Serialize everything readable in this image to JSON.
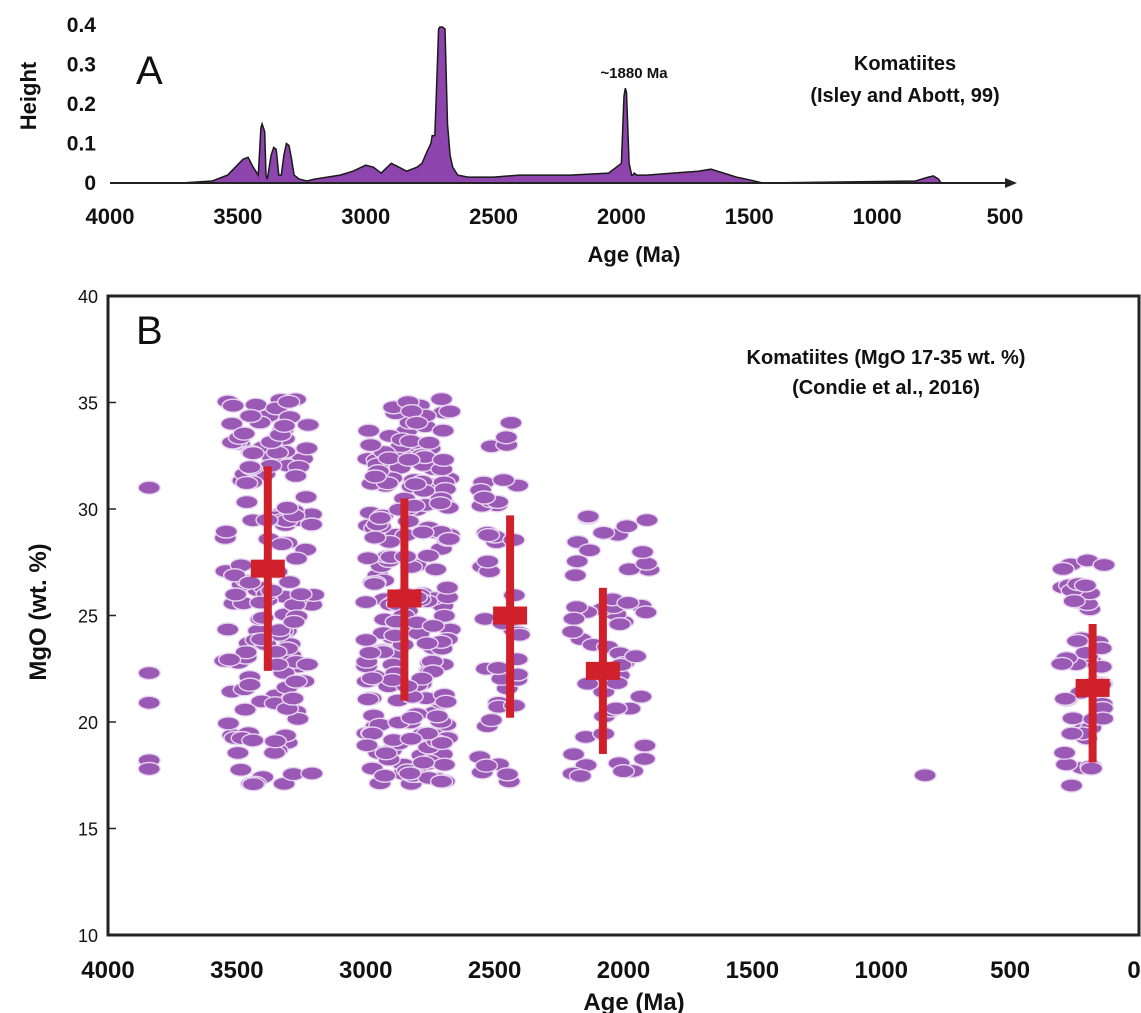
{
  "colors": {
    "purple_fill": "#8e44ad",
    "purple_dark": "#6a2c85",
    "dot_fill": "#9b59b6",
    "dot_stroke": "#e8d6f0",
    "red": "#d0202a",
    "axis": "#222222"
  },
  "chart_data": [
    {
      "type": "area",
      "panel": "A",
      "xlabel": "Age (Ma)",
      "ylabel": "Height",
      "annotation": "~1880 Ma",
      "legend_lines": [
        "Komatiites",
        "(Isley and Abott, 99)"
      ],
      "xlim": [
        4000,
        500
      ],
      "ylim": [
        0,
        0.4
      ],
      "x_ticks": [
        "4000",
        "3500",
        "3000",
        "2500",
        "2000",
        "1500",
        "1000",
        "500"
      ],
      "y_ticks": [
        "0",
        "0.1",
        "0.2",
        "0.3",
        "0.4"
      ],
      "x_tick_values": [
        4000,
        3500,
        3000,
        2500,
        2000,
        1500,
        1000,
        500
      ],
      "y_tick_values": [
        0,
        0.1,
        0.2,
        0.3,
        0.4
      ],
      "series": [
        {
          "x": [
            3850,
            3700,
            3600,
            3540,
            3510,
            3480,
            3460,
            3440,
            3420,
            3410,
            3405,
            3395,
            3390,
            3385,
            3370,
            3360,
            3350,
            3340,
            3330,
            3320,
            3310,
            3300,
            3290,
            3280,
            3260,
            3230,
            3200,
            3100,
            3050,
            3000,
            2970,
            2940,
            2900,
            2870,
            2840,
            2800,
            2780,
            2760,
            2745,
            2740,
            2730,
            2725,
            2715,
            2710,
            2700,
            2690,
            2680,
            2670,
            2660,
            2640,
            2600,
            2500,
            2400,
            2200,
            2050,
            2000,
            1990,
            1985,
            1980,
            1970,
            1960,
            1955,
            1950,
            1940,
            1900,
            1800,
            1700,
            1650,
            1600,
            1550,
            1500,
            1460,
            1450,
            850,
            800,
            780,
            760,
            750
          ],
          "y": [
            0,
            0.001,
            0.005,
            0.02,
            0.04,
            0.06,
            0.065,
            0.04,
            0.02,
            0.14,
            0.15,
            0.13,
            0.02,
            0.01,
            0.07,
            0.09,
            0.085,
            0.02,
            0.02,
            0.07,
            0.1,
            0.095,
            0.06,
            0.02,
            0.01,
            0.005,
            0.01,
            0.02,
            0.03,
            0.045,
            0.04,
            0.025,
            0.05,
            0.04,
            0.03,
            0.04,
            0.05,
            0.08,
            0.1,
            0.12,
            0.12,
            0.2,
            0.39,
            0.395,
            0.395,
            0.39,
            0.15,
            0.07,
            0.04,
            0.02,
            0.015,
            0.015,
            0.02,
            0.02,
            0.025,
            0.05,
            0.22,
            0.24,
            0.23,
            0.05,
            0.02,
            0.02,
            0.025,
            0.02,
            0.02,
            0.025,
            0.03,
            0.035,
            0.025,
            0.015,
            0.008,
            0.002,
            0,
            0.005,
            0.015,
            0.018,
            0.01,
            0
          ]
        }
      ]
    },
    {
      "type": "scatter",
      "panel": "B",
      "xlabel": "Age (Ma)",
      "ylabel": "MgO (wt. %)",
      "legend_lines": [
        "Komatiites (MgO 17-35 wt. %)",
        "(Condie et al., 2016)"
      ],
      "xlim": [
        4000,
        0
      ],
      "ylim": [
        10,
        40
      ],
      "x_ticks": [
        "4000",
        "3500",
        "3000",
        "2500",
        "2000",
        "1500",
        "1000",
        "500",
        "0"
      ],
      "y_ticks": [
        "10",
        "15",
        "20",
        "25",
        "30",
        "35",
        "40"
      ],
      "x_tick_values": [
        4000,
        3500,
        3000,
        2500,
        2000,
        1500,
        1000,
        500,
        0
      ],
      "y_tick_values": [
        10,
        15,
        20,
        25,
        30,
        35,
        40
      ],
      "clusters": [
        {
          "x": 3840,
          "y": [
            31,
            22.3,
            20.9,
            18.2,
            17.8
          ]
        },
        {
          "x_range": [
            3550,
            3200
          ],
          "y_range": [
            17,
            35.2
          ],
          "count": 160
        },
        {
          "x_range": [
            3000,
            2670
          ],
          "y_range": [
            17,
            35.2
          ],
          "count": 230
        },
        {
          "x_range": [
            2560,
            2400
          ],
          "y_range": [
            17.2,
            34.8
          ],
          "count": 45
        },
        {
          "x_range": [
            2200,
            1900
          ],
          "y_range": [
            17,
            30
          ],
          "count": 55
        },
        {
          "x": 830,
          "y": [
            17.5
          ]
        },
        {
          "x_range": [
            300,
            130
          ],
          "y_range": [
            17,
            28
          ],
          "count": 50
        }
      ],
      "means": [
        {
          "x": 3380,
          "mean": 27.2,
          "low": 22.4,
          "high": 32
        },
        {
          "x": 2850,
          "mean": 25.8,
          "low": 21,
          "high": 30.5
        },
        {
          "x": 2440,
          "mean": 25,
          "low": 20.2,
          "high": 29.7
        },
        {
          "x": 2080,
          "mean": 22.4,
          "low": 18.5,
          "high": 26.3
        },
        {
          "x": 180,
          "mean": 21.6,
          "low": 18.1,
          "high": 24.6
        }
      ]
    }
  ]
}
